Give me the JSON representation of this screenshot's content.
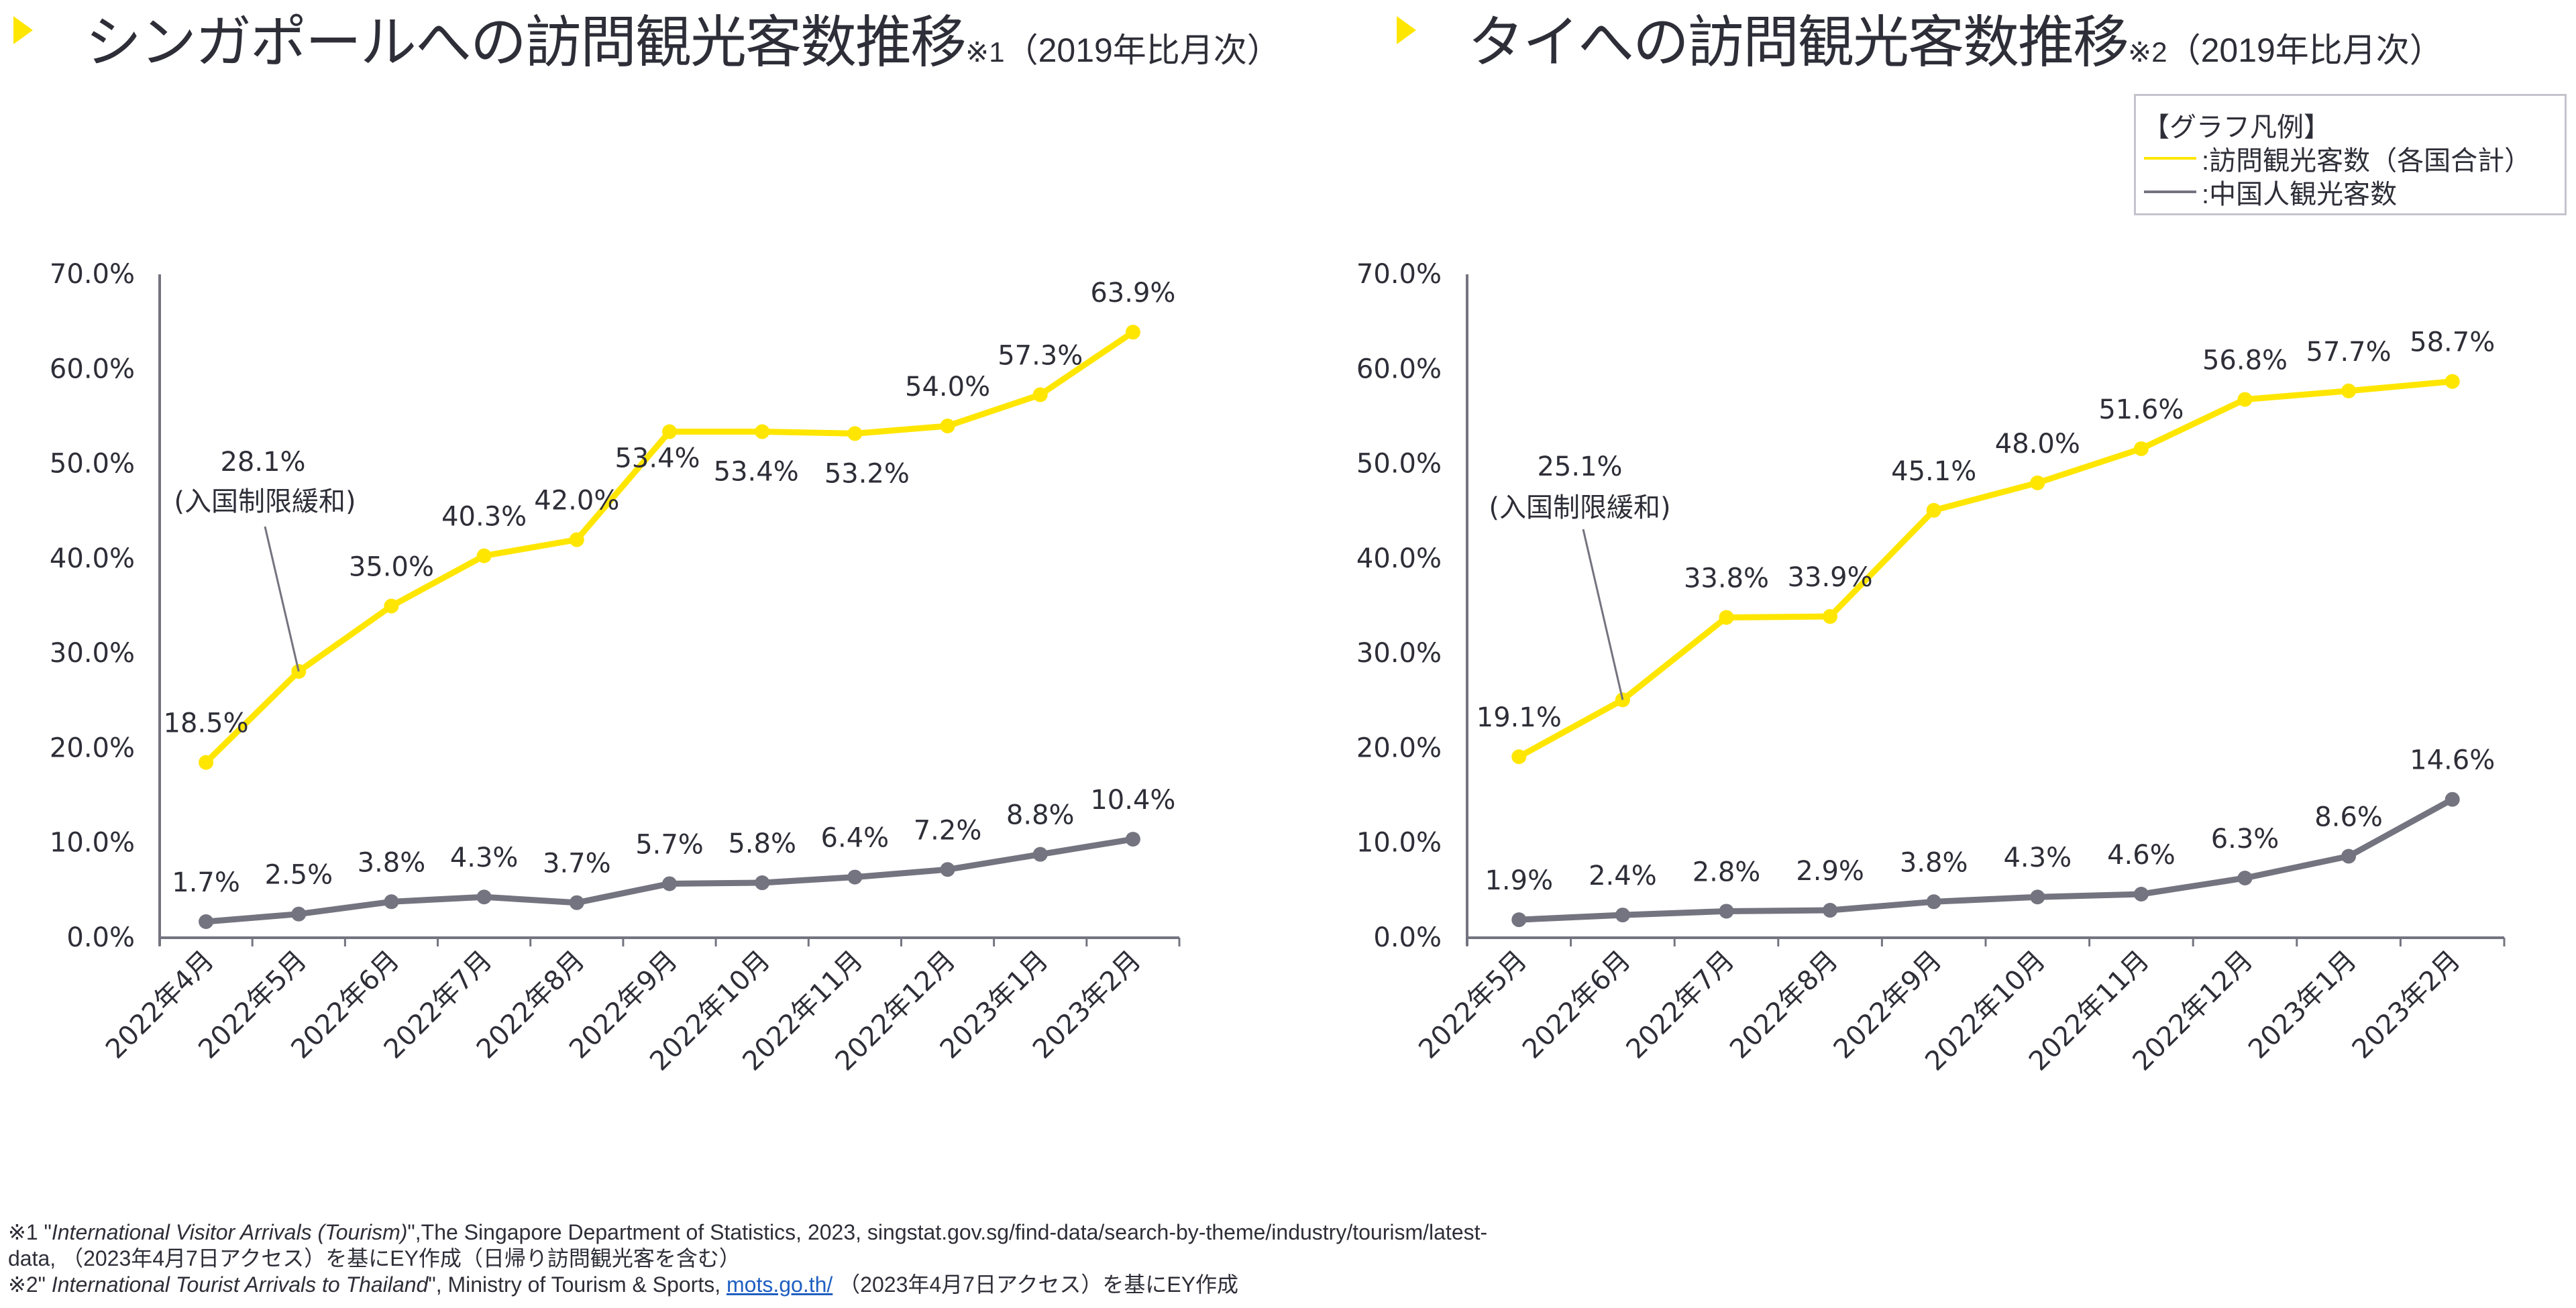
{
  "titles": [
    {
      "main": "シンガポールへの訪問観光客数推移",
      "note": "※1",
      "sub": "（2019年比月次）"
    },
    {
      "main": "タイへの訪問観光客数推移",
      "note": "※2",
      "sub": "（2019年比月次）"
    }
  ],
  "legend": {
    "heading": "【グラフ凡例】",
    "items": [
      {
        "label": ":訪問観光客数（各国合計）",
        "color": "#FFE600"
      },
      {
        "label": ":中国人観光客数",
        "color": "#747480"
      }
    ]
  },
  "colors": {
    "accent_yellow": "#FFE600",
    "series_gray": "#747480",
    "axis": "#747480",
    "text": "#2E2E38",
    "legend_border": "#C4C4CD",
    "link": "#1F5FC1"
  },
  "footnotes": {
    "fn1": {
      "prefix": "※1 \"",
      "italic": "International Visitor Arrivals (Tourism)",
      "rest": "\",The Singapore Department of Statistics, 2023, singstat.gov.sg/find-data/search-by-theme/industry/tourism/latest-",
      "line2": "data, （2023年4月7日アクセス）を基にEY作成（日帰り訪問観光客を含む）"
    },
    "fn2": {
      "prefix": "※2\" ",
      "italic": "International Tourist Arrivals to Thailand",
      "mid": "\", Ministry of Tourism & Sports, ",
      "link": "mots.go.th/",
      "suffix": " （2023年4月7日アクセス）を基にEY作成"
    }
  },
  "chart_data": [
    {
      "type": "line",
      "title": "シンガポールへの訪問観光客数推移※1（2019年比月次）",
      "xlabel": "",
      "ylabel": "",
      "ylim": [
        0,
        70
      ],
      "yticks": [
        0,
        10,
        20,
        30,
        40,
        50,
        60,
        70
      ],
      "ytick_labels": [
        "0.0%",
        "10.0%",
        "20.0%",
        "30.0%",
        "40.0%",
        "50.0%",
        "60.0%",
        "70.0%"
      ],
      "grid": false,
      "legend": "top-right",
      "categories": [
        "2022年4月",
        "2022年5月",
        "2022年6月",
        "2022年7月",
        "2022年8月",
        "2022年9月",
        "2022年10月",
        "2022年11月",
        "2022年12月",
        "2023年1月",
        "2023年2月"
      ],
      "series": [
        {
          "name": "訪問観光客数（各国合計）",
          "color": "#FFE600",
          "values": [
            18.5,
            28.1,
            35.0,
            40.3,
            42.0,
            53.4,
            53.4,
            53.2,
            54.0,
            57.3,
            63.9
          ],
          "labels": [
            "18.5%",
            "28.1%",
            "35.0%",
            "40.3%",
            "42.0%",
            "53.4%",
            "53.4%",
            "53.2%",
            "54.0%",
            "57.3%",
            "63.9%"
          ]
        },
        {
          "name": "中国人観光客数",
          "color": "#747480",
          "values": [
            1.7,
            2.5,
            3.8,
            4.3,
            3.7,
            5.7,
            5.8,
            6.4,
            7.2,
            8.8,
            10.4
          ],
          "labels": [
            "1.7%",
            "2.5%",
            "3.8%",
            "4.3%",
            "3.7%",
            "5.7%",
            "5.8%",
            "6.4%",
            "7.2%",
            "8.8%",
            "10.4%"
          ]
        }
      ],
      "annotation": {
        "series": 0,
        "index": 1,
        "note": "(入国制限緩和)"
      }
    },
    {
      "type": "line",
      "title": "タイへの訪問観光客数推移※2（2019年比月次）",
      "xlabel": "",
      "ylabel": "",
      "ylim": [
        0,
        70
      ],
      "yticks": [
        0,
        10,
        20,
        30,
        40,
        50,
        60,
        70
      ],
      "ytick_labels": [
        "0.0%",
        "10.0%",
        "20.0%",
        "30.0%",
        "40.0%",
        "50.0%",
        "60.0%",
        "70.0%"
      ],
      "grid": false,
      "legend": "top-right",
      "categories": [
        "2022年5月",
        "2022年6月",
        "2022年7月",
        "2022年8月",
        "2022年9月",
        "2022年10月",
        "2022年11月",
        "2022年12月",
        "2023年1月",
        "2023年2月"
      ],
      "series": [
        {
          "name": "訪問観光客数（各国合計）",
          "color": "#FFE600",
          "values": [
            19.1,
            25.1,
            33.8,
            33.9,
            45.1,
            48.0,
            51.6,
            56.8,
            57.7,
            58.7
          ],
          "labels": [
            "19.1%",
            "25.1%",
            "33.8%",
            "33.9%",
            "45.1%",
            "48.0%",
            "51.6%",
            "56.8%",
            "57.7%",
            "58.7%"
          ]
        },
        {
          "name": "中国人観光客数",
          "color": "#747480",
          "values": [
            1.9,
            2.4,
            2.8,
            2.9,
            3.8,
            4.3,
            4.6,
            6.3,
            8.6,
            14.6
          ],
          "labels": [
            "1.9%",
            "2.4%",
            "2.8%",
            "2.9%",
            "3.8%",
            "4.3%",
            "4.6%",
            "6.3%",
            "8.6%",
            "14.6%"
          ]
        }
      ],
      "annotation": {
        "series": 0,
        "index": 1,
        "note": "(入国制限緩和)"
      }
    }
  ]
}
